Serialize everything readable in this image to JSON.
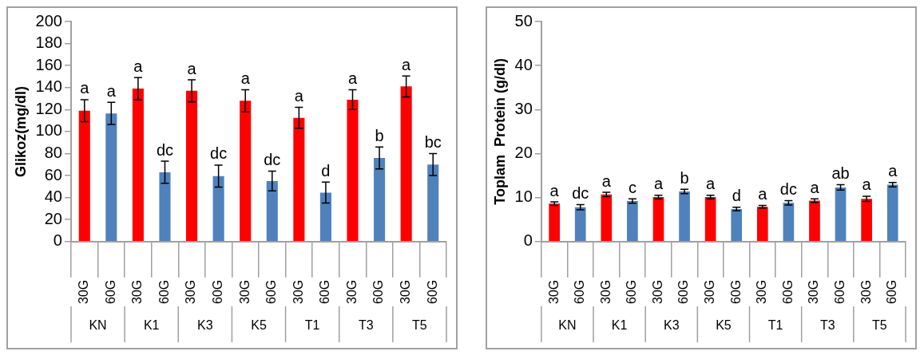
{
  "chart_data": [
    {
      "type": "bar",
      "ylabel": "Glikoz(mg/dl)",
      "categories": [
        "30G",
        "60G",
        "30G",
        "60G",
        "30G",
        "60G",
        "30G",
        "60G",
        "30G",
        "60G",
        "30G",
        "60G",
        "30G",
        "60G"
      ],
      "values": [
        119,
        116.5,
        139,
        63,
        137,
        59.5,
        128,
        55,
        112.5,
        44.5,
        129,
        76,
        141,
        70
      ],
      "errors": [
        10,
        10,
        10,
        10,
        10,
        10,
        10,
        9,
        9.5,
        9.5,
        9,
        10,
        9.5,
        10
      ],
      "colors": [
        "#ff0000",
        "#4f81bd",
        "#ff0000",
        "#4f81bd",
        "#ff0000",
        "#4f81bd",
        "#ff0000",
        "#4f81bd",
        "#ff0000",
        "#4f81bd",
        "#ff0000",
        "#4f81bd",
        "#ff0000",
        "#4f81bd"
      ],
      "value_labels": [
        "a",
        "a",
        "a",
        "dc",
        "a",
        "dc",
        "a",
        "dc",
        "a",
        "d",
        "a",
        "b",
        "a",
        "bc"
      ],
      "annotations": [
        "KN",
        "K1",
        "K3",
        "K5",
        "T1",
        "T3",
        "T5"
      ],
      "ylim": [
        0,
        200
      ],
      "yticks": [
        0,
        20,
        40,
        60,
        80,
        100,
        120,
        140,
        160,
        180,
        200
      ],
      "legend": false
    },
    {
      "type": "bar",
      "ylabel": "Toplam  Protein (g/dl)",
      "categories": [
        "30G",
        "60G",
        "30G",
        "60G",
        "30G",
        "60G",
        "30G",
        "60G",
        "30G",
        "60G",
        "30G",
        "60G",
        "30G",
        "60G"
      ],
      "values": [
        8.6,
        7.8,
        10.7,
        9.2,
        10.1,
        11.4,
        10.1,
        7.4,
        7.9,
        8.8,
        9.3,
        12.3,
        9.7,
        12.9
      ],
      "errors": [
        0.4,
        0.6,
        0.5,
        0.5,
        0.4,
        0.5,
        0.4,
        0.4,
        0.3,
        0.5,
        0.4,
        0.6,
        0.6,
        0.5
      ],
      "colors": [
        "#ff0000",
        "#4f81bd",
        "#ff0000",
        "#4f81bd",
        "#ff0000",
        "#4f81bd",
        "#ff0000",
        "#4f81bd",
        "#ff0000",
        "#4f81bd",
        "#ff0000",
        "#4f81bd",
        "#ff0000",
        "#4f81bd"
      ],
      "value_labels": [
        "a",
        "dc",
        "a",
        "c",
        "a",
        "b",
        "a",
        "d",
        "a",
        "dc",
        "a",
        "ab",
        "a",
        "a"
      ],
      "annotations": [
        "KN",
        "K1",
        "K3",
        "K5",
        "T1",
        "T3",
        "T5"
      ],
      "ylim": [
        0,
        50
      ],
      "yticks": [
        0,
        10,
        20,
        30,
        40,
        50
      ],
      "legend": false
    }
  ]
}
